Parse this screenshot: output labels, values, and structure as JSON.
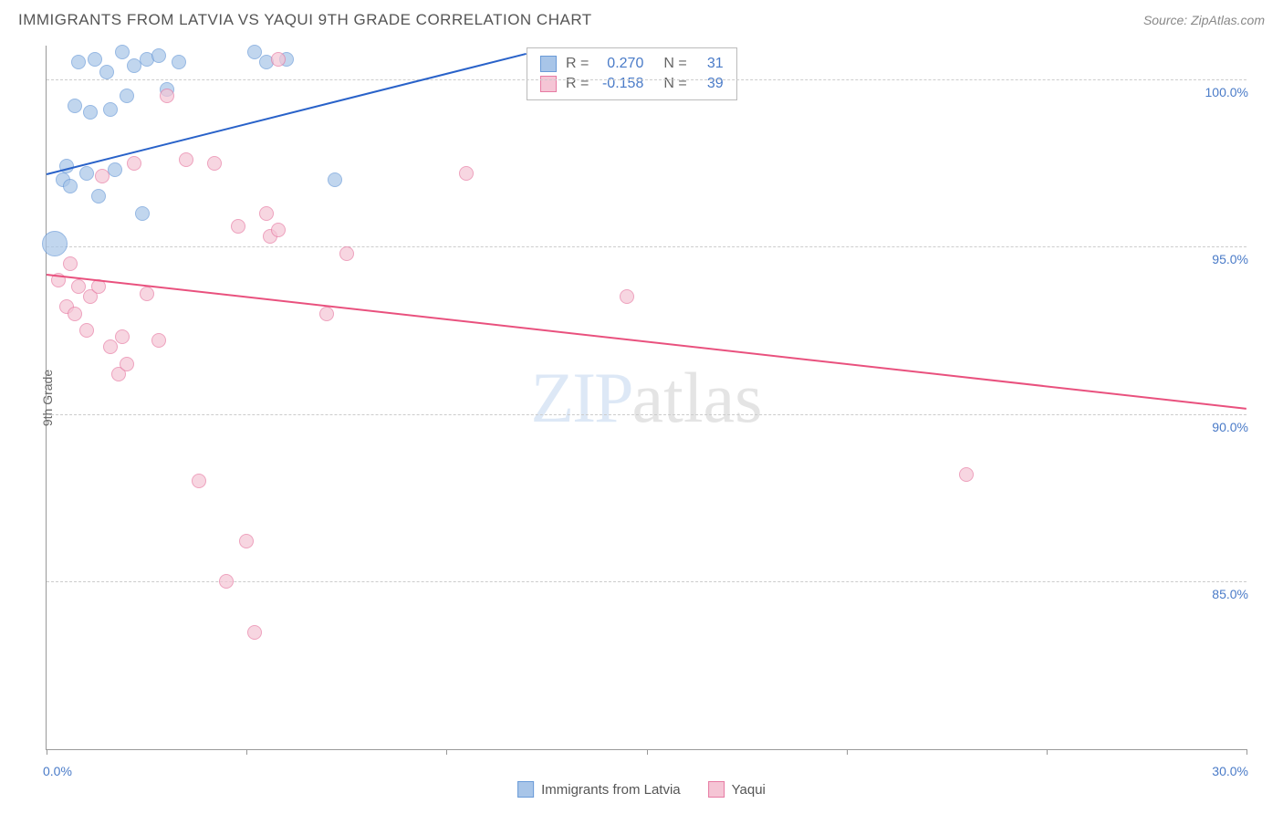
{
  "title": "IMMIGRANTS FROM LATVIA VS YAQUI 9TH GRADE CORRELATION CHART",
  "source": "Source: ZipAtlas.com",
  "ylabel": "9th Grade",
  "watermark_zip": "ZIP",
  "watermark_atlas": "atlas",
  "chart": {
    "type": "scatter",
    "background_color": "#ffffff",
    "grid_color": "#cccccc",
    "xlim": [
      0,
      30
    ],
    "ylim": [
      80,
      101
    ],
    "xticks": [
      0,
      5,
      10,
      15,
      20,
      25,
      30
    ],
    "xtick_labels_shown": {
      "0": "0.0%",
      "30": "30.0%"
    },
    "yticks": [
      85,
      90,
      95,
      100
    ],
    "ytick_labels": {
      "85": "85.0%",
      "90": "90.0%",
      "95": "95.0%",
      "100": "100.0%"
    },
    "series": [
      {
        "name": "Immigrants from Latvia",
        "color_fill": "#a8c5e8",
        "color_stroke": "#6a9bd8",
        "opacity": 0.7,
        "correlation_r": "0.270",
        "correlation_n": "31",
        "trend": {
          "x1": 0,
          "y1": 97.2,
          "x2": 12,
          "y2": 100.8,
          "color": "#2962c9",
          "width": 2
        },
        "points": [
          {
            "x": 0.2,
            "y": 95.1,
            "r": 14
          },
          {
            "x": 0.4,
            "y": 97.0,
            "r": 8
          },
          {
            "x": 0.5,
            "y": 97.4,
            "r": 8
          },
          {
            "x": 0.6,
            "y": 96.8,
            "r": 8
          },
          {
            "x": 0.7,
            "y": 99.2,
            "r": 8
          },
          {
            "x": 0.8,
            "y": 100.5,
            "r": 8
          },
          {
            "x": 1.0,
            "y": 97.2,
            "r": 8
          },
          {
            "x": 1.1,
            "y": 99.0,
            "r": 8
          },
          {
            "x": 1.2,
            "y": 100.6,
            "r": 8
          },
          {
            "x": 1.3,
            "y": 96.5,
            "r": 8
          },
          {
            "x": 1.5,
            "y": 100.2,
            "r": 8
          },
          {
            "x": 1.6,
            "y": 99.1,
            "r": 8
          },
          {
            "x": 1.7,
            "y": 97.3,
            "r": 8
          },
          {
            "x": 1.9,
            "y": 100.8,
            "r": 8
          },
          {
            "x": 2.0,
            "y": 99.5,
            "r": 8
          },
          {
            "x": 2.2,
            "y": 100.4,
            "r": 8
          },
          {
            "x": 2.4,
            "y": 96.0,
            "r": 8
          },
          {
            "x": 2.5,
            "y": 100.6,
            "r": 8
          },
          {
            "x": 2.8,
            "y": 100.7,
            "r": 8
          },
          {
            "x": 3.0,
            "y": 99.7,
            "r": 8
          },
          {
            "x": 3.3,
            "y": 100.5,
            "r": 8
          },
          {
            "x": 5.2,
            "y": 100.8,
            "r": 8
          },
          {
            "x": 5.5,
            "y": 100.5,
            "r": 8
          },
          {
            "x": 6.0,
            "y": 100.6,
            "r": 8
          },
          {
            "x": 7.2,
            "y": 97.0,
            "r": 8
          }
        ]
      },
      {
        "name": "Yaqui",
        "color_fill": "#f5c5d5",
        "color_stroke": "#e77ba3",
        "opacity": 0.7,
        "correlation_r": "-0.158",
        "correlation_n": "39",
        "trend": {
          "x1": 0,
          "y1": 94.2,
          "x2": 30,
          "y2": 90.2,
          "color": "#e9517e",
          "width": 2
        },
        "points": [
          {
            "x": 0.3,
            "y": 94.0,
            "r": 8
          },
          {
            "x": 0.5,
            "y": 93.2,
            "r": 8
          },
          {
            "x": 0.6,
            "y": 94.5,
            "r": 8
          },
          {
            "x": 0.7,
            "y": 93.0,
            "r": 8
          },
          {
            "x": 0.8,
            "y": 93.8,
            "r": 8
          },
          {
            "x": 1.0,
            "y": 92.5,
            "r": 8
          },
          {
            "x": 1.1,
            "y": 93.5,
            "r": 8
          },
          {
            "x": 1.3,
            "y": 93.8,
            "r": 8
          },
          {
            "x": 1.4,
            "y": 97.1,
            "r": 8
          },
          {
            "x": 1.6,
            "y": 92.0,
            "r": 8
          },
          {
            "x": 1.8,
            "y": 91.2,
            "r": 8
          },
          {
            "x": 1.9,
            "y": 92.3,
            "r": 8
          },
          {
            "x": 2.0,
            "y": 91.5,
            "r": 8
          },
          {
            "x": 2.2,
            "y": 97.5,
            "r": 8
          },
          {
            "x": 2.5,
            "y": 93.6,
            "r": 8
          },
          {
            "x": 2.8,
            "y": 92.2,
            "r": 8
          },
          {
            "x": 3.0,
            "y": 99.5,
            "r": 8
          },
          {
            "x": 3.5,
            "y": 97.6,
            "r": 8
          },
          {
            "x": 3.8,
            "y": 88.0,
            "r": 8
          },
          {
            "x": 4.2,
            "y": 97.5,
            "r": 8
          },
          {
            "x": 4.5,
            "y": 85.0,
            "r": 8
          },
          {
            "x": 4.8,
            "y": 95.6,
            "r": 8
          },
          {
            "x": 5.0,
            "y": 86.2,
            "r": 8
          },
          {
            "x": 5.2,
            "y": 83.5,
            "r": 8
          },
          {
            "x": 5.5,
            "y": 96.0,
            "r": 8
          },
          {
            "x": 5.6,
            "y": 95.3,
            "r": 8
          },
          {
            "x": 5.8,
            "y": 100.6,
            "r": 8
          },
          {
            "x": 5.8,
            "y": 95.5,
            "r": 8
          },
          {
            "x": 7.0,
            "y": 93.0,
            "r": 8
          },
          {
            "x": 7.5,
            "y": 94.8,
            "r": 8
          },
          {
            "x": 10.5,
            "y": 97.2,
            "r": 8
          },
          {
            "x": 14.5,
            "y": 93.5,
            "r": 8
          },
          {
            "x": 23.0,
            "y": 88.2,
            "r": 8
          }
        ]
      }
    ]
  },
  "legend_box": {
    "r_label": "R =",
    "n_label": "N ="
  },
  "bottom_legend": {
    "series1": "Immigrants from Latvia",
    "series2": "Yaqui"
  }
}
